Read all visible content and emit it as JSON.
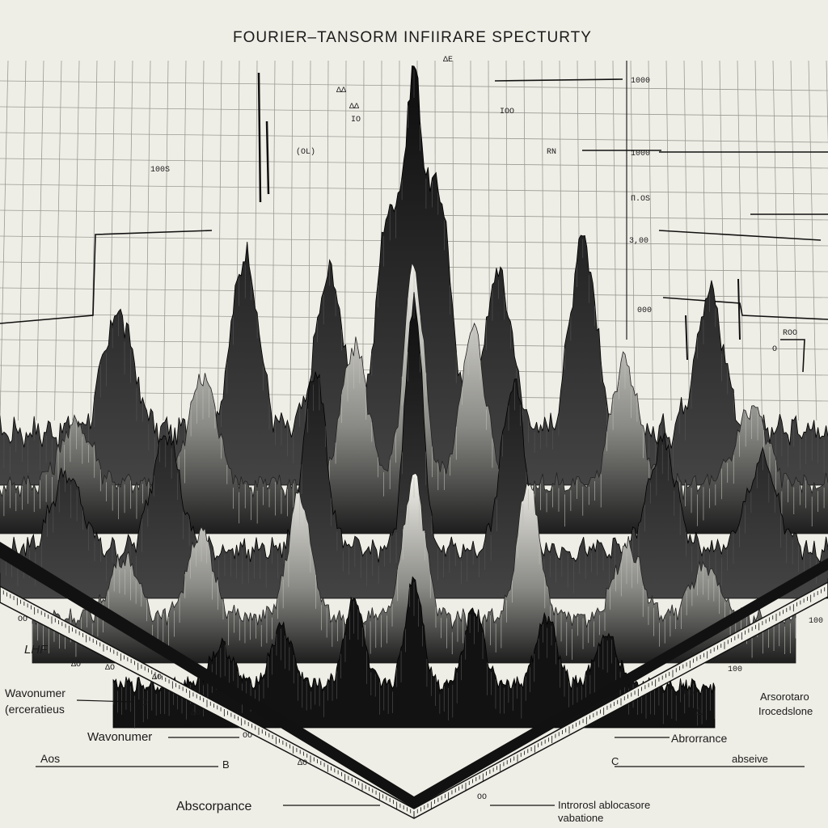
{
  "chart_data": {
    "type": "area",
    "title": "FOURIER–TANSORM INFIIRARE SPECTURTY",
    "grid": true,
    "right_axis_ticks": [
      "1000",
      "1000",
      "3,00",
      "000"
    ],
    "small_labels": [
      "100S",
      "ΔΔ",
      "ΔΔ",
      "IO",
      "(OL)",
      "IOO",
      "ΔE",
      "RN",
      "Π.OS",
      "ROO",
      "O"
    ],
    "axis_labels": [
      {
        "text": "Wavonumer"
      },
      {
        "text": "(erceratieus"
      },
      {
        "text": "Wavonumer"
      },
      {
        "text": "Aos"
      },
      {
        "text": "Abscorpance"
      },
      {
        "text": "Abrorrance"
      },
      {
        "text": "Arsorotaro"
      },
      {
        "text": "Irocedslone"
      },
      {
        "text": "abseive"
      },
      {
        "text": "Introrosl ablocasore"
      },
      {
        "text": "vabatione"
      }
    ],
    "left_ruler_ticks": [
      "OO",
      "ΔO",
      "ΔO",
      "ΔO",
      "ΔO",
      "OO",
      "ΔO"
    ],
    "right_ruler_ticks": [
      "100",
      "100",
      "OO",
      "OO"
    ],
    "letters": [
      "LHF",
      "D",
      "B",
      "C",
      "Δ"
    ],
    "ridges": [
      {
        "index": 0,
        "peaks": [
          [
            0.5,
            0.8
          ],
          [
            0.47,
            0.55
          ],
          [
            0.53,
            0.6
          ],
          [
            0.3,
            0.45
          ],
          [
            0.7,
            0.5
          ],
          [
            0.15,
            0.3
          ],
          [
            0.85,
            0.35
          ],
          [
            0.4,
            0.4
          ],
          [
            0.6,
            0.4
          ]
        ]
      },
      {
        "index": 1,
        "peaks": [
          [
            0.5,
            0.7
          ],
          [
            0.43,
            0.45
          ],
          [
            0.57,
            0.5
          ],
          [
            0.25,
            0.35
          ],
          [
            0.75,
            0.4
          ],
          [
            0.1,
            0.2
          ],
          [
            0.9,
            0.25
          ]
        ]
      },
      {
        "index": 2,
        "peaks": [
          [
            0.5,
            0.85
          ],
          [
            0.38,
            0.6
          ],
          [
            0.62,
            0.55
          ],
          [
            0.2,
            0.4
          ],
          [
            0.8,
            0.35
          ],
          [
            0.08,
            0.25
          ],
          [
            0.92,
            0.3
          ]
        ]
      },
      {
        "index": 3,
        "peaks": [
          [
            0.5,
            0.6
          ],
          [
            0.35,
            0.5
          ],
          [
            0.65,
            0.55
          ],
          [
            0.22,
            0.35
          ],
          [
            0.78,
            0.3
          ],
          [
            0.12,
            0.25
          ],
          [
            0.88,
            0.2
          ]
        ]
      },
      {
        "index": 4,
        "peaks": [
          [
            0.5,
            0.55
          ],
          [
            0.4,
            0.45
          ],
          [
            0.6,
            0.4
          ],
          [
            0.28,
            0.3
          ],
          [
            0.72,
            0.35
          ],
          [
            0.18,
            0.2
          ],
          [
            0.82,
            0.25
          ]
        ]
      }
    ]
  }
}
